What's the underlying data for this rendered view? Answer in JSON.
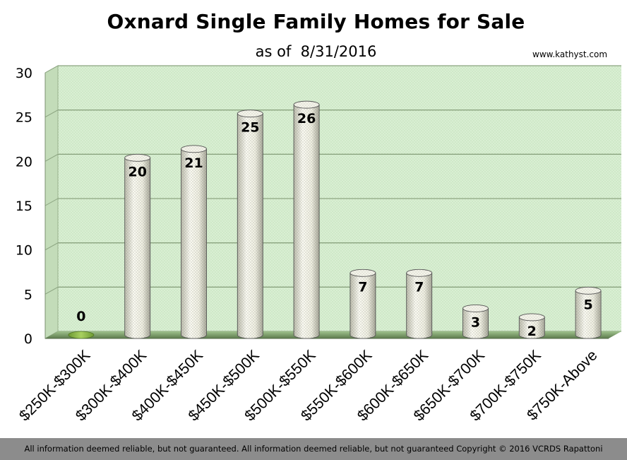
{
  "header": {
    "title": "Oxnard Single Family Homes for Sale",
    "subtitle": "as of  8/31/2016",
    "website": "www.kathyst.com"
  },
  "footer": {
    "text": "All information deemed reliable, but not guaranteed. All information deemed reliable, but not guaranteed Copyright © 2016 VCRDS  Rapattoni"
  },
  "chart_data": {
    "type": "bar",
    "title": "Oxnard Single Family Homes for Sale",
    "subtitle": "as of  8/31/2016",
    "xlabel": "",
    "ylabel": "",
    "categories": [
      "$250K-$300K",
      "$300K-$400K",
      "$400K-$450K",
      "$450K-$500K",
      "$500K-$550K",
      "$550K-$600K",
      "$600K-$650K",
      "$650K-$700K",
      "$700K-$750K",
      "$750K-Above"
    ],
    "values": [
      0,
      20,
      21,
      25,
      26,
      7,
      7,
      3,
      2,
      5
    ],
    "ylim": [
      0,
      30
    ],
    "yticks": [
      0,
      5,
      10,
      15,
      20,
      25,
      30
    ],
    "grid": true,
    "legend": "none",
    "style": "3d-cylinder",
    "colors": {
      "plot_background": "#d9efd3",
      "bar_fill": "#f2f2e6",
      "gridline": "#8aa37f",
      "floor": "#8ab44e"
    }
  }
}
